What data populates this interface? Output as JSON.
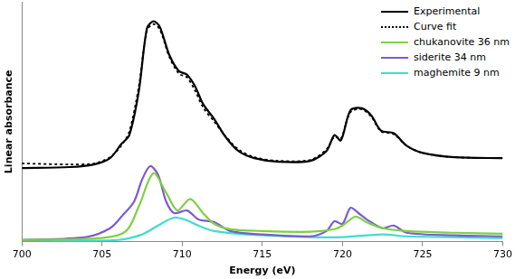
{
  "chart_data": {
    "type": "line",
    "x_label": "Energy (eV)",
    "y_label": "Linear absorbance",
    "xlim": [
      700,
      730
    ],
    "xticks": [
      700,
      705,
      710,
      715,
      720,
      725,
      730
    ],
    "ylim": [
      0,
      10
    ],
    "grid": false,
    "legend": "upper right",
    "tick_labels": "x",
    "series": [
      {
        "name": "Experimental",
        "color": "#000000",
        "line_style": "solid",
        "x": [
          700,
          703,
          704.5,
          705.5,
          706.2,
          706.7,
          707.3,
          707.8,
          708.2,
          708.6,
          709.2,
          709.8,
          710.3,
          710.8,
          711.3,
          712,
          712.7,
          713.5,
          714.5,
          716,
          718,
          719,
          719.5,
          719.9,
          720.5,
          721.2,
          721.8,
          722.4,
          723.2,
          724,
          725,
          727,
          730
        ],
        "values": [
          3.07,
          3.11,
          3.22,
          3.48,
          4.07,
          4.44,
          6.3,
          8.89,
          9.19,
          8.96,
          7.78,
          7.11,
          6.96,
          6.48,
          5.74,
          5.11,
          4.37,
          3.78,
          3.48,
          3.33,
          3.37,
          3.78,
          4.44,
          4.22,
          5.48,
          5.56,
          5.26,
          4.63,
          4.52,
          4.0,
          3.7,
          3.52,
          3.48
        ]
      },
      {
        "name": "Curve fit",
        "color": "#000000",
        "line_style": "dotted",
        "x": [
          700,
          703,
          704.5,
          705.5,
          706.2,
          706.7,
          707.3,
          707.8,
          708.2,
          708.6,
          709.2,
          709.8,
          710.3,
          710.8,
          711.3,
          712,
          712.7,
          713.5,
          714.5,
          716,
          718,
          719,
          719.5,
          719.9,
          720.5,
          721.2,
          721.8,
          722.4,
          723.2,
          724,
          725,
          727,
          730
        ],
        "values": [
          3.26,
          3.22,
          3.26,
          3.52,
          4.0,
          4.59,
          6.5,
          8.8,
          9.07,
          8.85,
          7.7,
          7.0,
          6.85,
          6.3,
          5.6,
          5.0,
          4.4,
          3.85,
          3.52,
          3.37,
          3.41,
          3.85,
          4.37,
          4.3,
          5.4,
          5.52,
          5.2,
          4.6,
          4.48,
          4.0,
          3.7,
          3.52,
          3.48
        ]
      },
      {
        "name": "chukanovite 36 nm",
        "color": "#7fd041",
        "line_style": "solid",
        "x": [
          700,
          705,
          706.5,
          707.3,
          708.2,
          709,
          709.7,
          710.5,
          711.3,
          712,
          713,
          715,
          718,
          719.5,
          720,
          720.8,
          721.5,
          722.5,
          724,
          727,
          730
        ],
        "values": [
          0.07,
          0.15,
          0.44,
          1.48,
          2.85,
          2.04,
          1.3,
          1.78,
          1.19,
          0.74,
          0.52,
          0.44,
          0.41,
          0.52,
          0.67,
          1.04,
          0.81,
          0.56,
          0.44,
          0.37,
          0.33
        ]
      },
      {
        "name": "siderite 34 nm",
        "color": "#7a5ad6",
        "line_style": "solid",
        "x": [
          700,
          704,
          705.5,
          706.3,
          707,
          707.5,
          708,
          708.5,
          709,
          709.5,
          710.3,
          711,
          712,
          713,
          715,
          718,
          719,
          719.5,
          720,
          720.5,
          721,
          721.5,
          722.5,
          723.2,
          724,
          727,
          730
        ],
        "values": [
          0.07,
          0.19,
          0.56,
          1.11,
          1.67,
          2.59,
          3.15,
          2.78,
          1.67,
          1.19,
          1.3,
          0.93,
          0.81,
          0.44,
          0.3,
          0.22,
          0.44,
          0.85,
          0.74,
          1.41,
          1.19,
          0.93,
          0.56,
          0.67,
          0.37,
          0.26,
          0.22
        ]
      },
      {
        "name": "maghemite 9 nm",
        "color": "#3fdcd0",
        "line_style": "solid",
        "x": [
          700,
          706,
          707.5,
          708.5,
          709.5,
          710.3,
          711,
          712,
          714,
          718,
          720,
          722.5,
          724,
          730
        ],
        "values": [
          0.04,
          0.07,
          0.3,
          0.67,
          1.0,
          0.89,
          0.67,
          0.44,
          0.3,
          0.19,
          0.19,
          0.3,
          0.22,
          0.15
        ]
      }
    ]
  }
}
